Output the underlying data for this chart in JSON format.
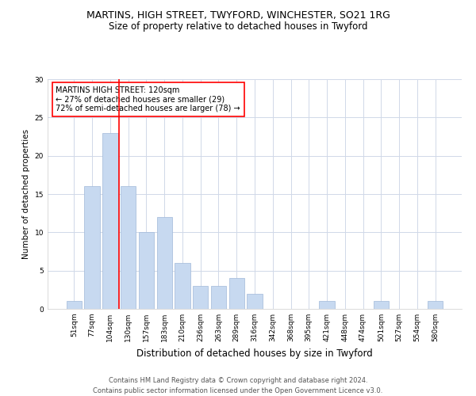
{
  "title": "MARTINS, HIGH STREET, TWYFORD, WINCHESTER, SO21 1RG",
  "subtitle": "Size of property relative to detached houses in Twyford",
  "xlabel": "Distribution of detached houses by size in Twyford",
  "ylabel": "Number of detached properties",
  "categories": [
    "51sqm",
    "77sqm",
    "104sqm",
    "130sqm",
    "157sqm",
    "183sqm",
    "210sqm",
    "236sqm",
    "263sqm",
    "289sqm",
    "316sqm",
    "342sqm",
    "368sqm",
    "395sqm",
    "421sqm",
    "448sqm",
    "474sqm",
    "501sqm",
    "527sqm",
    "554sqm",
    "580sqm"
  ],
  "values": [
    1,
    16,
    23,
    16,
    10,
    12,
    6,
    3,
    3,
    4,
    2,
    0,
    0,
    0,
    1,
    0,
    0,
    1,
    0,
    0,
    1
  ],
  "bar_color": "#c7d9f0",
  "bar_edge_color": "#a0b8d8",
  "red_line_x": 2.5,
  "annotation_text": "MARTINS HIGH STREET: 120sqm\n← 27% of detached houses are smaller (29)\n72% of semi-detached houses are larger (78) →",
  "annotation_box_color": "white",
  "annotation_box_edge_color": "red",
  "ylim": [
    0,
    30
  ],
  "yticks": [
    0,
    5,
    10,
    15,
    20,
    25,
    30
  ],
  "grid_color": "#d0d8e8",
  "footer_text": "Contains HM Land Registry data © Crown copyright and database right 2024.\nContains public sector information licensed under the Open Government Licence v3.0.",
  "title_fontsize": 9,
  "subtitle_fontsize": 8.5,
  "xlabel_fontsize": 8.5,
  "ylabel_fontsize": 7.5,
  "tick_fontsize": 6.5,
  "annotation_fontsize": 7,
  "footer_fontsize": 6
}
